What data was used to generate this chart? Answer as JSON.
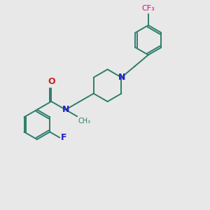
{
  "background_color": "#e8e8e8",
  "bond_color": "#2d7d6b",
  "N_color": "#2020cc",
  "O_color": "#cc2020",
  "F_color": "#2020cc",
  "CF3_color": "#cc1480",
  "figsize": [
    3.0,
    3.0
  ],
  "dpi": 100,
  "xlim": [
    0,
    10
  ],
  "ylim": [
    0,
    10
  ]
}
